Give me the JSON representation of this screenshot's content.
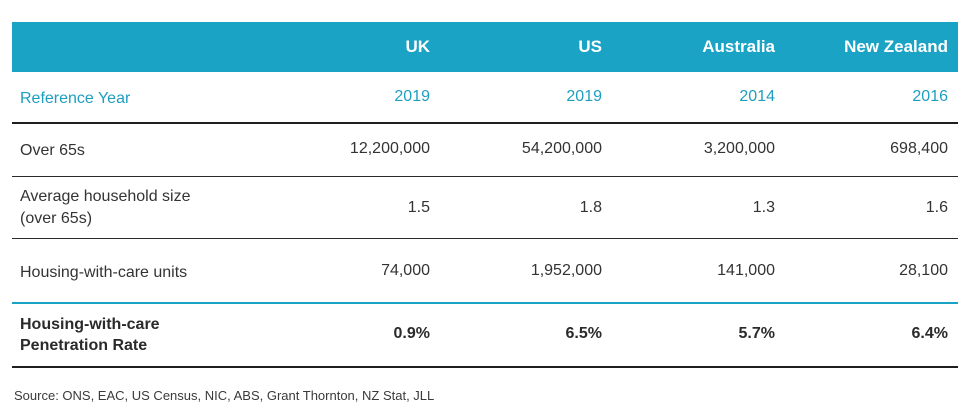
{
  "table": {
    "headers": [
      "",
      "UK",
      "US",
      "Australia",
      "New Zealand"
    ],
    "reference_year": {
      "label": "Reference Year",
      "values": [
        "2019",
        "2019",
        "2014",
        "2016"
      ]
    },
    "rows": [
      {
        "label": "Over 65s",
        "values": [
          "12,200,000",
          "54,200,000",
          "3,200,000",
          "698,400"
        ]
      },
      {
        "label_line1": "Average household size",
        "label_line2": "(over 65s)",
        "values": [
          "1.5",
          "1.8",
          "1.3",
          "1.6"
        ]
      },
      {
        "label": "Housing-with-care units",
        "values": [
          "74,000",
          "1,952,000",
          "141,000",
          "28,100"
        ]
      },
      {
        "label_line1": "Housing-with-care",
        "label_line2": "Penetration Rate",
        "values": [
          "0.9%",
          "6.5%",
          "5.7%",
          "6.4%"
        ]
      }
    ]
  },
  "source": "Source: ONS, EAC, US Census, NIC, ABS, Grant Thornton, NZ Stat, JLL",
  "colors": {
    "header_bg": "#1aa3c4",
    "reference_text": "#1e9ec0",
    "rule": "#1f1f1f"
  }
}
